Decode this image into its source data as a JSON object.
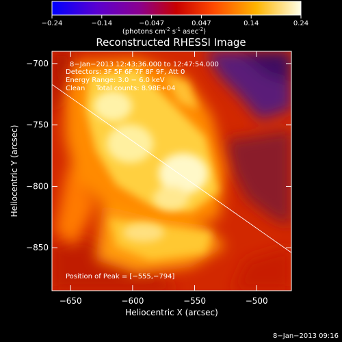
{
  "chart_data": {
    "type": "heatmap",
    "title": "Reconstructed RHESSI Image",
    "colorbar": {
      "ticks": [
        "-0.24",
        "-0.14",
        "-0.047",
        "0.047",
        "0.14",
        "0.24"
      ],
      "range": [
        -0.24,
        0.24
      ],
      "label_main": "(photons cm",
      "label_exp1": "-2",
      "label_mid": " s",
      "label_exp2": "-1",
      "label_mid2": " asec",
      "label_exp3": "-2",
      "label_end": ")"
    },
    "xlabel": "Heliocentric X (arcsec)",
    "ylabel": "Heliocentric Y (arcsec)",
    "xlim": [
      -665,
      -472
    ],
    "ylim": [
      -885,
      -690
    ],
    "xticks": [
      -650,
      -600,
      -550,
      -500
    ],
    "yticks": [
      -700,
      -750,
      -800,
      -850
    ],
    "xtick_labels": [
      "−650",
      "−600",
      "−550",
      "−500"
    ],
    "ytick_labels": [
      "−700",
      "−750",
      "−800",
      "−850"
    ],
    "annotations": [
      "8−Jan−2013 12:43:36.000 to 12:47:54.000",
      "Detectors: 3F 5F 6F 7F 8F 9F, Att 0",
      "Energy Range: 3.0 − 6.0 keV",
      "Clean     Total counts: 8.98E+04"
    ],
    "peak_label": "Position of Peak = [−555,−794]",
    "peak": [
      -555,
      -794
    ],
    "limb_line": [
      [
        -665,
        -717
      ],
      [
        -472,
        -854
      ]
    ]
  },
  "footer": {
    "timestamp": "8−Jan−2013 09:16"
  }
}
